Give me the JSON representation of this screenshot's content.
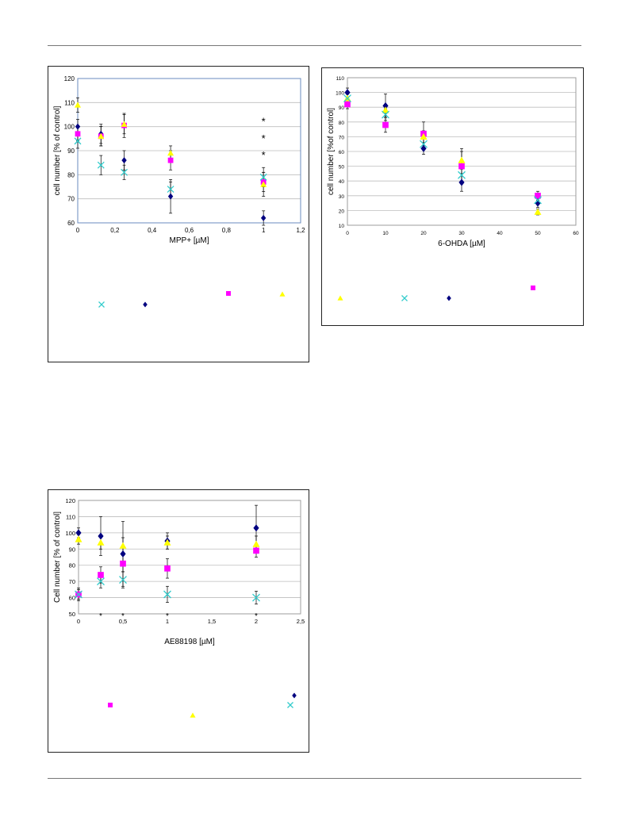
{
  "chart_data": [
    {
      "type": "scatter",
      "title": "",
      "xlabel": "MPP+ [µM]",
      "ylabel": "cell number [% of control]",
      "xlim": [
        0,
        1.2
      ],
      "ylim": [
        60,
        120
      ],
      "x_ticks": [
        "0",
        "0,2",
        "0,4",
        "0,6",
        "0,8",
        "1",
        "1,2"
      ],
      "y_ticks": [
        "60",
        "70",
        "80",
        "90",
        "100",
        "110",
        "120"
      ],
      "grid": true,
      "plot_border_color": "#6a8bbf",
      "legend_placement": "bottom",
      "annotations": [
        {
          "text": "*",
          "x": 1,
          "y": 102
        },
        {
          "text": "*",
          "x": 1,
          "y": 95
        },
        {
          "text": "*",
          "x": 1,
          "y": 88
        }
      ],
      "series": [
        {
          "marker": "diamond",
          "color": "#000080",
          "x": [
            0,
            0.125,
            0.25,
            0.5,
            1
          ],
          "y": [
            100,
            97,
            86,
            71,
            62
          ],
          "err": [
            3,
            4,
            4,
            7,
            3
          ]
        },
        {
          "marker": "square",
          "color": "#ff00ff",
          "x": [
            0,
            0.125,
            0.25,
            0.5,
            1
          ],
          "y": [
            97,
            96,
            100.5,
            86,
            77
          ],
          "err": [
            3,
            4,
            5,
            4,
            4
          ]
        },
        {
          "marker": "triangle",
          "color": "#ffff00",
          "x": [
            0,
            0.125,
            0.25,
            0.5,
            1
          ],
          "y": [
            109,
            96,
            101,
            89,
            76
          ],
          "err": [
            3,
            4,
            4,
            3,
            5
          ]
        },
        {
          "marker": "x",
          "color": "#33cccc",
          "x": [
            0,
            0.125,
            0.25,
            0.5,
            1
          ],
          "y": [
            94,
            84,
            81,
            74,
            79
          ],
          "err": [
            3,
            4,
            3,
            3,
            4
          ]
        }
      ]
    },
    {
      "type": "scatter",
      "title": "",
      "xlabel": "6-OHDA [µM]",
      "ylabel": "cell number [%of control]",
      "xlim": [
        0,
        60
      ],
      "ylim": [
        10,
        110
      ],
      "x_ticks": [
        "0",
        "10",
        "20",
        "30",
        "40",
        "50",
        "60"
      ],
      "y_ticks": [
        "10",
        "20",
        "30",
        "40",
        "50",
        "60",
        "70",
        "80",
        "90",
        "100",
        "110"
      ],
      "grid": true,
      "plot_border_color": "#9e9e9e",
      "legend_placement": "bottom",
      "annotations": [],
      "series": [
        {
          "marker": "diamond",
          "color": "#000080",
          "x": [
            0,
            10,
            20,
            30,
            50
          ],
          "y": [
            100,
            91,
            62,
            39,
            25
          ],
          "err": [
            3,
            8,
            4,
            6,
            3
          ]
        },
        {
          "marker": "square",
          "color": "#ff00ff",
          "x": [
            0,
            10,
            20,
            30,
            50
          ],
          "y": [
            92,
            78,
            72,
            50,
            30
          ],
          "err": [
            3,
            5,
            8,
            12,
            3
          ]
        },
        {
          "marker": "triangle",
          "color": "#ffff00",
          "x": [
            0,
            10,
            20,
            30,
            50
          ],
          "y": [
            96,
            88,
            70,
            54,
            19
          ],
          "err": [
            3,
            4,
            4,
            6,
            2
          ]
        },
        {
          "marker": "x",
          "color": "#33cccc",
          "x": [
            0,
            10,
            20,
            30,
            50
          ],
          "y": [
            96,
            85,
            65,
            44,
            27
          ],
          "err": [
            3,
            4,
            4,
            5,
            3
          ]
        }
      ]
    },
    {
      "type": "scatter",
      "title": "",
      "xlabel": "AE88198 [µM]",
      "ylabel": "Cell number [% of control]",
      "xlim": [
        0,
        2.5
      ],
      "ylim": [
        50,
        120
      ],
      "x_ticks": [
        "0",
        "0,5",
        "1",
        "1,5",
        "2",
        "2,5"
      ],
      "y_ticks": [
        "50",
        "60",
        "70",
        "80",
        "90",
        "100",
        "110",
        "120"
      ],
      "grid": true,
      "plot_border_color": "#9e9e9e",
      "legend_placement": "bottom",
      "annotations": [
        {
          "text": "*",
          "x": 0.25,
          "y": 50
        },
        {
          "text": "*",
          "x": 0.5,
          "y": 50
        },
        {
          "text": "*",
          "x": 1,
          "y": 50
        },
        {
          "text": "*",
          "x": 2,
          "y": 50
        }
      ],
      "series": [
        {
          "marker": "diamond",
          "color": "#000080",
          "x": [
            0,
            0.25,
            0.5,
            1,
            2
          ],
          "y": [
            100,
            98,
            87,
            95,
            103
          ],
          "err": [
            3,
            12,
            20,
            5,
            14
          ]
        },
        {
          "marker": "square",
          "color": "#ff00ff",
          "x": [
            0,
            0.25,
            0.5,
            1,
            2
          ],
          "y": [
            62,
            74,
            81,
            78,
            89
          ],
          "err": [
            4,
            5,
            5,
            6,
            4
          ]
        },
        {
          "marker": "triangle",
          "color": "#ffff00",
          "x": [
            0,
            0.25,
            0.5,
            1,
            2
          ],
          "y": [
            96,
            94,
            92,
            94,
            93
          ],
          "err": [
            3,
            4,
            5,
            4,
            5
          ]
        },
        {
          "marker": "x",
          "color": "#33cccc",
          "x": [
            0,
            0.25,
            0.5,
            1,
            2
          ],
          "y": [
            62,
            70,
            71,
            62,
            60
          ],
          "err": [
            3,
            4,
            5,
            5,
            4
          ]
        }
      ]
    }
  ],
  "legends": [
    [
      {
        "marker": "x",
        "color": "#33cccc"
      },
      {
        "marker": "diamond",
        "color": "#000080"
      },
      {
        "marker": "square",
        "color": "#ff00ff"
      },
      {
        "marker": "triangle",
        "color": "#ffff00"
      }
    ],
    [
      {
        "marker": "triangle",
        "color": "#ffff00"
      },
      {
        "marker": "x",
        "color": "#33cccc"
      },
      {
        "marker": "diamond",
        "color": "#000080"
      },
      {
        "marker": "square",
        "color": "#ff00ff"
      }
    ],
    [
      {
        "marker": "square",
        "color": "#ff00ff"
      },
      {
        "marker": "triangle",
        "color": "#ffff00"
      },
      {
        "marker": "x",
        "color": "#33cccc"
      },
      {
        "marker": "diamond",
        "color": "#000080"
      }
    ]
  ]
}
